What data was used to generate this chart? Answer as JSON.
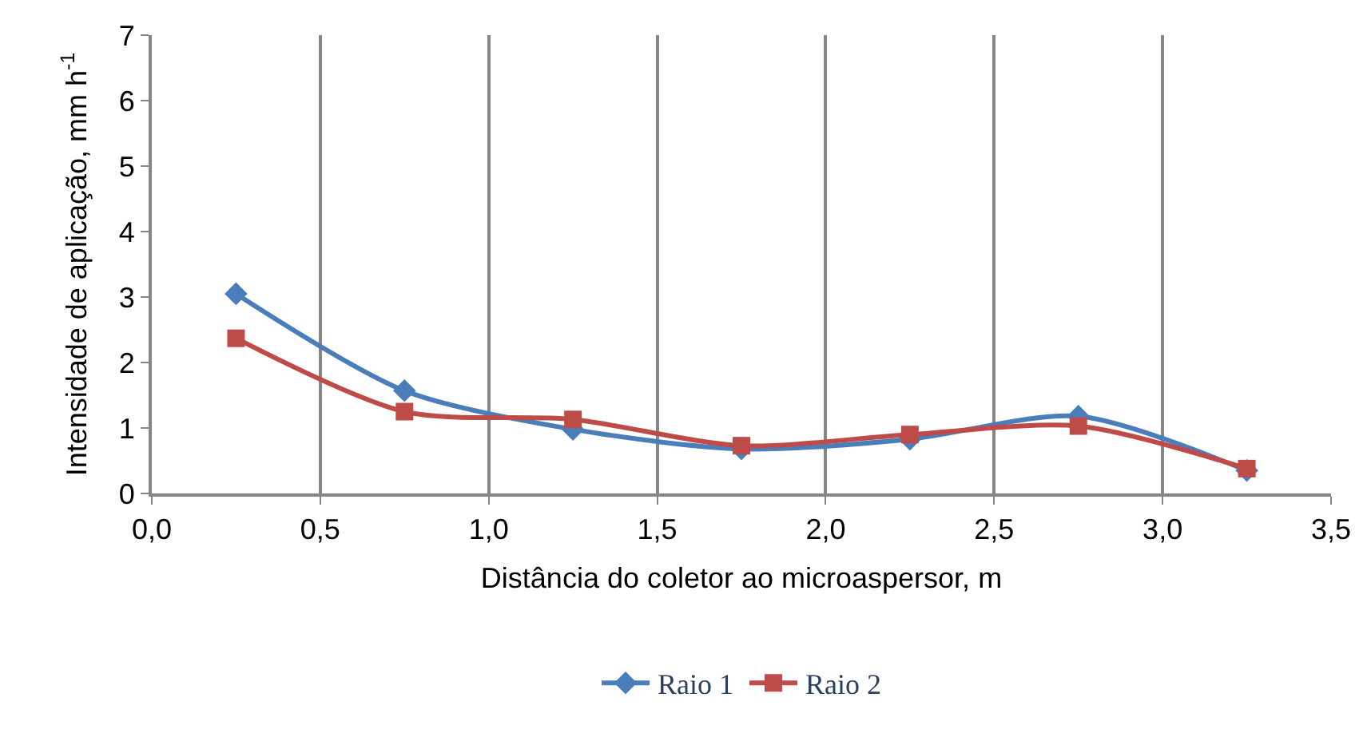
{
  "chart_data": {
    "type": "line",
    "xlabel": "Distância do coletor ao microaspersor, m",
    "ylabel": "Intensidade de aplicação, mm h$^{-1}$",
    "x": [
      0.25,
      0.75,
      1.25,
      1.75,
      2.25,
      2.75,
      3.25
    ],
    "series": [
      {
        "name": "Raio 1",
        "color": "#4a7ebb",
        "marker": "diamond",
        "values": [
          3.05,
          1.57,
          0.98,
          0.68,
          0.83,
          1.18,
          0.35
        ]
      },
      {
        "name": "Raio 2",
        "color": "#be4b48",
        "marker": "square",
        "values": [
          2.37,
          1.25,
          1.13,
          0.73,
          0.9,
          1.03,
          0.38
        ]
      }
    ],
    "xlim": [
      0,
      3.5
    ],
    "xticks": [
      {
        "value": 0,
        "label": "0,0"
      },
      {
        "value": 0.5,
        "label": "0,5"
      },
      {
        "value": 1,
        "label": "1,0"
      },
      {
        "value": 1.5,
        "label": "1,5"
      },
      {
        "value": 2,
        "label": "2,0"
      },
      {
        "value": 2.5,
        "label": "2,5"
      },
      {
        "value": 3,
        "label": "3,0"
      },
      {
        "value": 3.5,
        "label": "3,5"
      }
    ],
    "ylim": [
      0,
      7
    ],
    "yticks": [
      0,
      1,
      2,
      3,
      4,
      5,
      6,
      7
    ],
    "grid": "x",
    "legend": "bottom",
    "line_style": "solid"
  }
}
